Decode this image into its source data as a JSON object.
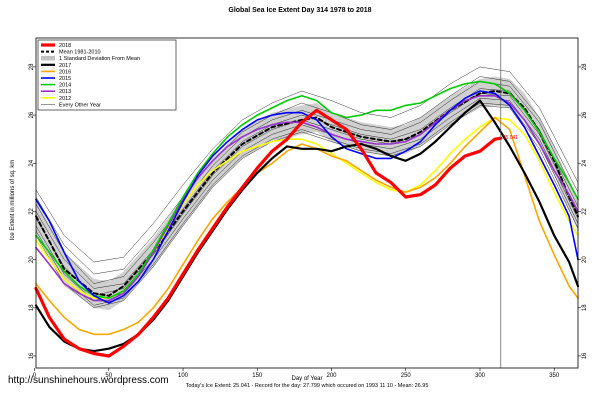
{
  "chart_data": {
    "type": "line",
    "title": "Global Sea Ice Extent Day 314 1978 to 2018",
    "xlabel": "Day of Year",
    "ylabel": "Ice Extent in millions of sq. km",
    "xlim": [
      1,
      366
    ],
    "ylim": [
      15.5,
      29.2
    ],
    "x_ticks": [
      0,
      50,
      100,
      150,
      200,
      250,
      300,
      350
    ],
    "y_ticks": [
      16,
      18,
      20,
      22,
      24,
      26,
      28
    ],
    "marker_day": 314,
    "marker_label": "25.041",
    "grid": false,
    "legend_position": "top-left",
    "legend": [
      {
        "label": "2018",
        "color": "#ff0000",
        "style": "solid",
        "width": 3.2
      },
      {
        "label": "Mean 1981-2010",
        "color": "#000000",
        "style": "dashed",
        "width": 2
      },
      {
        "label": "1 Standard Deviation From Mean",
        "color": "#c0c0c0",
        "style": "band",
        "width": 6
      },
      {
        "label": "2017",
        "color": "#000000",
        "style": "solid",
        "width": 2.2
      },
      {
        "label": "2016",
        "color": "#ffa500",
        "style": "solid",
        "width": 1.6
      },
      {
        "label": "2015",
        "color": "#0000ff",
        "style": "solid",
        "width": 1.6
      },
      {
        "label": "2014",
        "color": "#00cc00",
        "style": "solid",
        "width": 1.6
      },
      {
        "label": "2013",
        "color": "#9933cc",
        "style": "solid",
        "width": 1.6
      },
      {
        "label": "2012",
        "color": "#ffff00",
        "style": "solid",
        "width": 1.6
      },
      {
        "label": "Every Other Year",
        "color": "#000000",
        "style": "solid",
        "width": 0.4
      }
    ],
    "series": [
      {
        "name": "2018",
        "color": "#ff0000",
        "width": 3.2,
        "x": [
          1,
          10,
          20,
          30,
          40,
          50,
          60,
          70,
          80,
          90,
          100,
          110,
          120,
          130,
          140,
          150,
          160,
          170,
          180,
          190,
          200,
          210,
          220,
          230,
          240,
          250,
          260,
          270,
          280,
          290,
          300,
          310,
          314
        ],
        "y": [
          18.8,
          17.6,
          16.7,
          16.3,
          16.1,
          16.0,
          16.4,
          16.9,
          17.6,
          18.4,
          19.4,
          20.4,
          21.3,
          22.2,
          23.0,
          23.8,
          24.5,
          25.0,
          25.7,
          26.2,
          25.8,
          25.4,
          24.6,
          23.6,
          23.2,
          22.6,
          22.7,
          23.1,
          23.8,
          24.3,
          24.5,
          25.0,
          25.04
        ]
      },
      {
        "name": "Mean 1981-2010",
        "color": "#000000",
        "width": 2,
        "dash": "4,3",
        "x": [
          1,
          20,
          40,
          50,
          60,
          80,
          100,
          120,
          140,
          160,
          180,
          190,
          200,
          220,
          240,
          250,
          260,
          280,
          300,
          310,
          320,
          330,
          340,
          350,
          360,
          366
        ],
        "y": [
          21.8,
          19.6,
          18.6,
          18.5,
          18.9,
          20.3,
          22.0,
          23.6,
          24.8,
          25.5,
          25.8,
          25.9,
          25.5,
          25.1,
          24.9,
          25.0,
          25.3,
          26.2,
          26.9,
          27.0,
          26.9,
          26.3,
          25.3,
          24.1,
          22.6,
          21.8
        ]
      },
      {
        "name": "2017",
        "color": "#000000",
        "width": 2.2,
        "x": [
          1,
          10,
          20,
          30,
          40,
          50,
          60,
          70,
          80,
          90,
          100,
          110,
          120,
          130,
          140,
          150,
          160,
          170,
          180,
          190,
          200,
          210,
          220,
          230,
          240,
          250,
          260,
          270,
          280,
          290,
          300,
          310,
          320,
          330,
          340,
          350,
          360,
          366
        ],
        "y": [
          18.1,
          17.2,
          16.6,
          16.3,
          16.2,
          16.3,
          16.5,
          16.9,
          17.5,
          18.3,
          19.3,
          20.3,
          21.2,
          22.1,
          22.9,
          23.6,
          24.2,
          24.7,
          24.6,
          24.6,
          24.5,
          24.7,
          24.8,
          24.6,
          24.3,
          24.1,
          24.4,
          24.9,
          25.5,
          26.1,
          26.6,
          25.7,
          24.7,
          23.6,
          22.4,
          21.0,
          19.9,
          18.9
        ]
      },
      {
        "name": "2016",
        "color": "#ffa500",
        "width": 1.6,
        "x": [
          1,
          10,
          20,
          30,
          40,
          50,
          60,
          70,
          80,
          90,
          100,
          110,
          120,
          130,
          140,
          150,
          160,
          170,
          180,
          190,
          200,
          210,
          220,
          230,
          240,
          250,
          260,
          270,
          280,
          290,
          300,
          310,
          320,
          330,
          340,
          350,
          360,
          366
        ],
        "y": [
          19.0,
          18.3,
          17.6,
          17.1,
          16.9,
          16.9,
          17.1,
          17.4,
          18.0,
          18.8,
          19.8,
          20.8,
          21.7,
          22.4,
          23.0,
          23.6,
          24.0,
          24.5,
          24.8,
          24.6,
          24.3,
          24.1,
          23.7,
          23.3,
          23.0,
          22.8,
          23.0,
          23.4,
          24.0,
          24.7,
          25.3,
          25.9,
          25.4,
          23.5,
          21.6,
          20.2,
          18.9,
          18.4
        ]
      },
      {
        "name": "2015",
        "color": "#0000ff",
        "width": 1.6,
        "x": [
          1,
          10,
          20,
          30,
          40,
          50,
          60,
          70,
          80,
          90,
          100,
          110,
          120,
          130,
          140,
          150,
          160,
          170,
          180,
          190,
          200,
          210,
          220,
          230,
          240,
          250,
          260,
          270,
          280,
          290,
          300,
          310,
          320,
          330,
          340,
          350,
          360,
          366
        ],
        "y": [
          22.5,
          21.6,
          20.3,
          19.1,
          18.5,
          18.2,
          18.5,
          19.1,
          20.0,
          21.2,
          22.4,
          23.5,
          24.3,
          24.9,
          25.4,
          25.8,
          26.0,
          26.1,
          26.1,
          25.8,
          25.1,
          24.6,
          24.4,
          24.2,
          24.2,
          24.5,
          24.9,
          25.6,
          26.2,
          26.7,
          27.0,
          26.9,
          26.4,
          25.5,
          24.3,
          23.1,
          21.8,
          20.0
        ]
      },
      {
        "name": "2014",
        "color": "#00cc00",
        "width": 1.6,
        "x": [
          1,
          10,
          20,
          30,
          40,
          50,
          60,
          70,
          80,
          90,
          100,
          110,
          120,
          130,
          140,
          150,
          160,
          170,
          180,
          190,
          200,
          210,
          220,
          230,
          240,
          250,
          260,
          270,
          280,
          290,
          300,
          310,
          320,
          330,
          340,
          350,
          360,
          366
        ],
        "y": [
          21.0,
          20.3,
          19.5,
          18.9,
          18.5,
          18.4,
          18.7,
          19.4,
          20.4,
          21.5,
          22.6,
          23.6,
          24.4,
          25.1,
          25.6,
          26.0,
          26.3,
          26.6,
          26.8,
          26.6,
          26.1,
          25.9,
          26.0,
          26.2,
          26.2,
          26.4,
          26.5,
          26.8,
          27.1,
          27.3,
          27.4,
          27.3,
          26.9,
          26.2,
          25.3,
          24.2,
          23.2,
          22.5
        ]
      },
      {
        "name": "2013",
        "color": "#9933cc",
        "width": 1.6,
        "x": [
          1,
          10,
          20,
          30,
          40,
          50,
          60,
          70,
          80,
          90,
          100,
          110,
          120,
          130,
          140,
          150,
          160,
          170,
          180,
          190,
          200,
          210,
          220,
          230,
          240,
          250,
          260,
          270,
          280,
          290,
          300,
          310,
          320,
          330,
          340,
          350,
          360,
          366
        ],
        "y": [
          20.5,
          19.8,
          19.0,
          18.6,
          18.3,
          18.3,
          18.6,
          19.3,
          20.3,
          21.4,
          22.5,
          23.4,
          24.1,
          24.7,
          25.1,
          25.4,
          25.6,
          25.7,
          25.7,
          25.5,
          25.2,
          25.0,
          24.9,
          24.8,
          24.8,
          24.9,
          25.2,
          25.7,
          26.2,
          26.6,
          26.8,
          26.8,
          26.5,
          25.8,
          24.8,
          23.7,
          22.7,
          22.0
        ]
      },
      {
        "name": "2012",
        "color": "#ffff00",
        "width": 1.6,
        "x": [
          1,
          10,
          20,
          30,
          40,
          50,
          60,
          70,
          80,
          90,
          100,
          110,
          120,
          130,
          140,
          150,
          160,
          170,
          180,
          190,
          200,
          210,
          220,
          230,
          240,
          250,
          260,
          270,
          280,
          290,
          300,
          310,
          320,
          330,
          340,
          350,
          360,
          366
        ],
        "y": [
          20.8,
          20.0,
          19.2,
          18.7,
          18.4,
          18.4,
          18.7,
          19.4,
          20.3,
          21.3,
          22.3,
          23.1,
          23.7,
          24.1,
          24.5,
          24.7,
          24.9,
          25.0,
          25.0,
          24.8,
          24.4,
          24.0,
          23.6,
          23.2,
          22.9,
          22.8,
          23.1,
          23.7,
          24.4,
          25.0,
          25.5,
          25.9,
          25.8,
          25.2,
          24.1,
          22.8,
          21.6,
          21.0
        ]
      }
    ],
    "band": {
      "name": "1 Standard Deviation From Mean",
      "x": [
        1,
        20,
        40,
        50,
        60,
        80,
        100,
        120,
        140,
        160,
        180,
        190,
        200,
        220,
        240,
        250,
        260,
        280,
        300,
        310,
        320,
        330,
        340,
        350,
        360,
        366
      ],
      "lower": [
        21.1,
        18.9,
        18.0,
        17.9,
        18.3,
        19.7,
        21.4,
        23.0,
        24.2,
        24.9,
        25.2,
        25.3,
        24.9,
        24.5,
        24.3,
        24.4,
        24.7,
        25.6,
        26.3,
        26.4,
        26.3,
        25.7,
        24.7,
        23.5,
        22.0,
        21.2
      ],
      "upper": [
        22.5,
        20.3,
        19.2,
        19.1,
        19.5,
        20.9,
        22.6,
        24.2,
        25.4,
        26.1,
        26.4,
        26.5,
        26.1,
        25.7,
        25.5,
        25.6,
        25.9,
        26.8,
        27.5,
        27.6,
        27.5,
        26.9,
        25.9,
        24.7,
        23.2,
        22.4
      ]
    },
    "other_years": {
      "name": "Every Other Year",
      "color": "#000000",
      "width": 0.4,
      "x": [
        1,
        20,
        40,
        60,
        80,
        100,
        120,
        140,
        160,
        180,
        200,
        220,
        240,
        260,
        280,
        300,
        320,
        340,
        366
      ],
      "lines": [
        [
          22.6,
          20.6,
          19.4,
          19.6,
          21.0,
          22.6,
          24.1,
          25.3,
          26.0,
          26.5,
          26.1,
          25.6,
          25.4,
          25.9,
          26.8,
          27.6,
          27.4,
          25.9,
          22.8
        ],
        [
          22.0,
          20.0,
          18.8,
          19.0,
          20.4,
          22.1,
          23.7,
          24.9,
          25.6,
          26.0,
          25.6,
          25.2,
          25.0,
          25.4,
          26.3,
          27.1,
          27.0,
          25.4,
          22.2
        ],
        [
          21.4,
          19.4,
          18.3,
          18.6,
          20.0,
          21.7,
          23.3,
          24.5,
          25.2,
          25.6,
          25.2,
          24.8,
          24.6,
          25.0,
          25.9,
          26.7,
          26.6,
          25.0,
          21.7
        ],
        [
          21.0,
          19.0,
          18.0,
          18.3,
          19.7,
          21.4,
          23.0,
          24.2,
          24.9,
          25.3,
          24.9,
          24.5,
          24.3,
          24.7,
          25.6,
          26.4,
          26.3,
          24.6,
          21.3
        ],
        [
          22.9,
          21.0,
          19.9,
          20.1,
          21.5,
          23.1,
          24.6,
          25.8,
          26.5,
          27.0,
          26.6,
          26.1,
          25.9,
          26.4,
          27.3,
          28.0,
          27.8,
          26.3,
          23.2
        ],
        [
          22.3,
          20.3,
          19.0,
          19.3,
          20.7,
          22.3,
          23.9,
          25.1,
          25.8,
          26.2,
          25.8,
          25.4,
          25.2,
          25.7,
          26.6,
          27.4,
          27.2,
          25.7,
          22.5
        ],
        [
          21.7,
          19.7,
          18.5,
          18.8,
          20.2,
          21.9,
          23.5,
          24.7,
          25.4,
          25.8,
          25.4,
          25.0,
          24.8,
          25.2,
          26.1,
          26.9,
          26.8,
          25.2,
          21.9
        ],
        [
          21.2,
          19.2,
          18.1,
          18.4,
          19.8,
          21.5,
          23.1,
          24.3,
          25.0,
          25.4,
          25.0,
          24.6,
          24.4,
          24.8,
          25.7,
          26.5,
          26.4,
          24.8,
          21.5
        ]
      ]
    }
  },
  "footer": {
    "url": "http://sunshinehours.wordpress.com",
    "summary": "Today's Ice Extent: 25.041  -  Record for the day: 27.799 which occured on 1993 11 10  -  Mean: 26.95"
  }
}
